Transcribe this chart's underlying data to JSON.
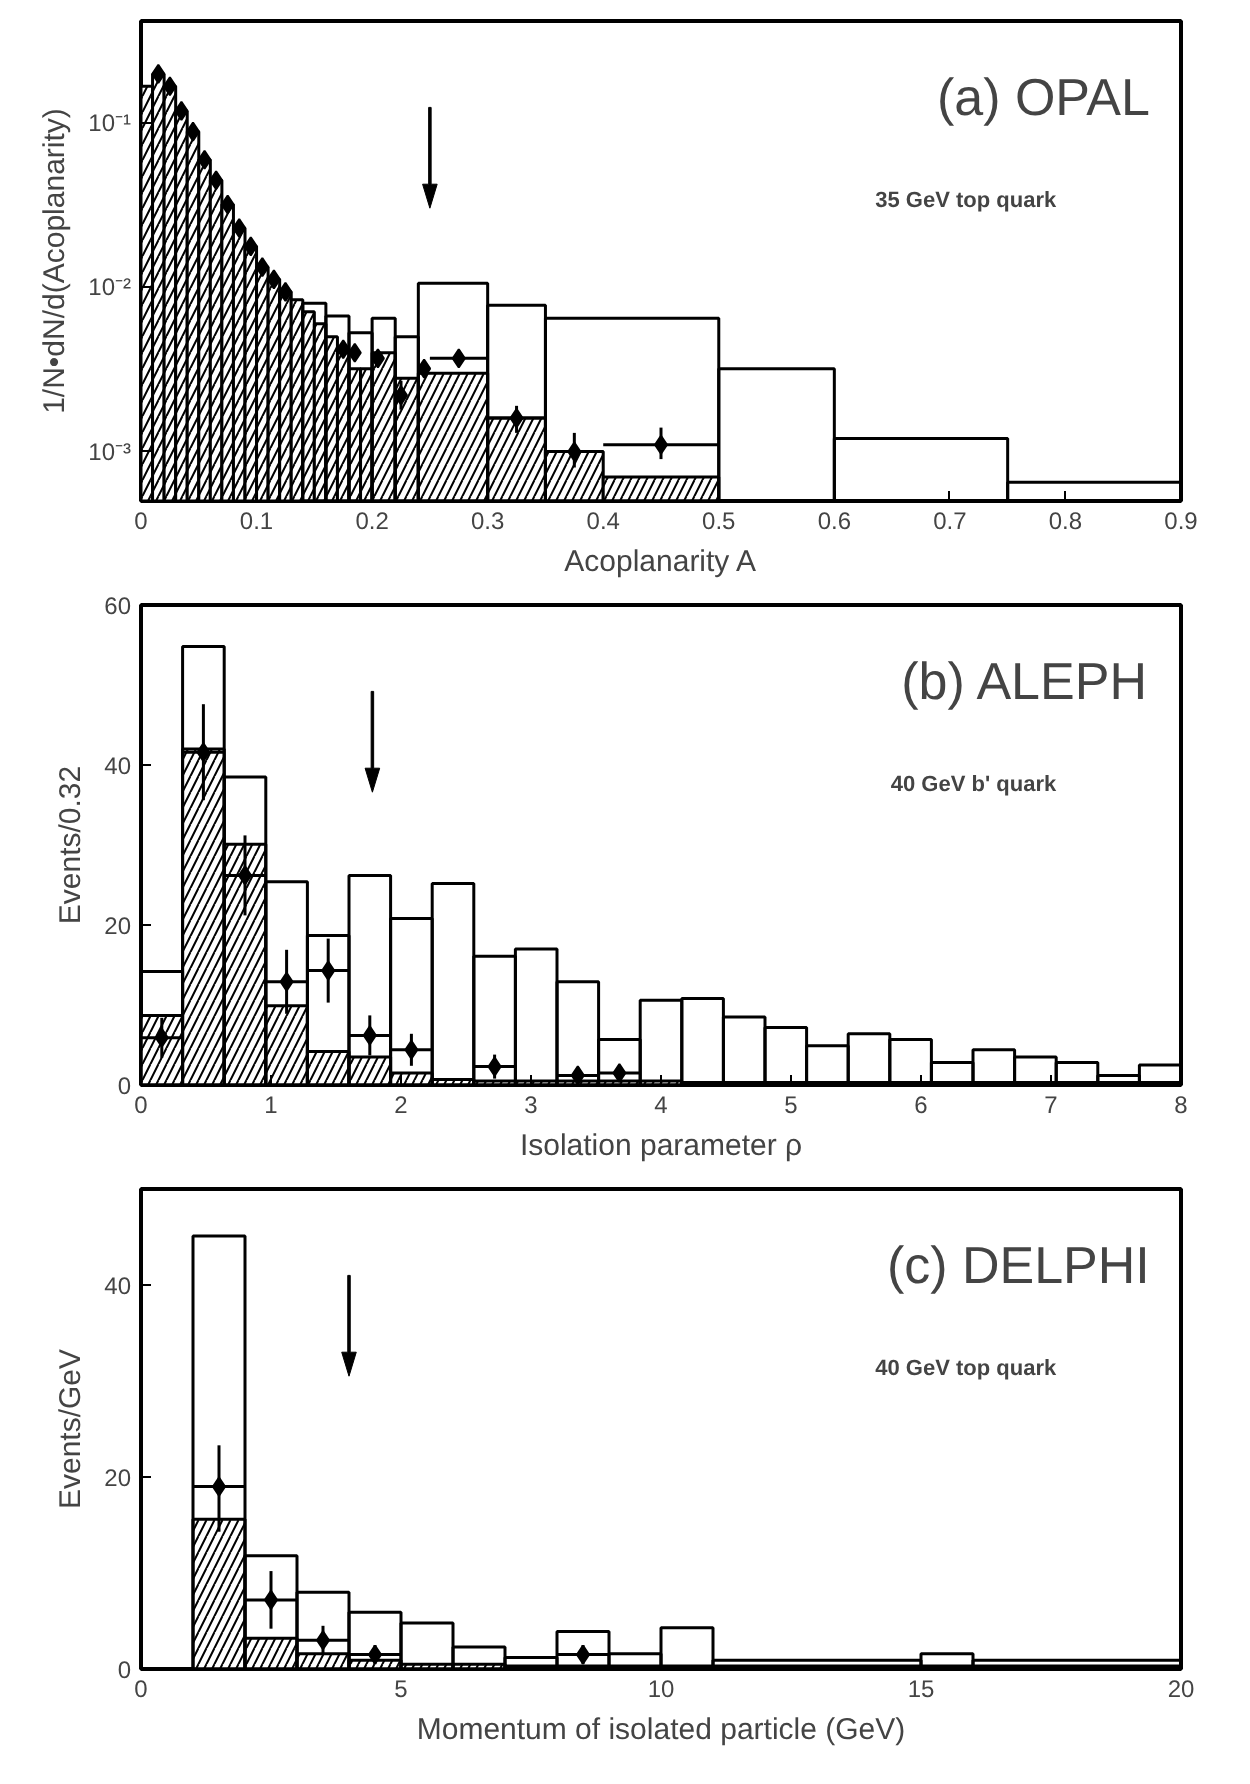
{
  "chart_data": [
    {
      "type": "histogram",
      "xlabel": "Acoplanarity A",
      "ylabel": "1/N•dN/d(Acoplanarity)",
      "annotations": [
        "(a) OPAL",
        "35 GeV top quark"
      ],
      "log": "y",
      "xlim": [
        0,
        0.9
      ],
      "ylim": [
        0.0005,
        0.42
      ],
      "xticks": [
        0,
        0.1,
        0.2,
        0.3,
        0.4,
        0.5,
        0.6,
        0.7,
        0.8,
        0.9
      ],
      "yticks": [
        {
          "value": 0.001,
          "label": "10⁻³"
        },
        {
          "value": 0.01,
          "label": "10⁻²"
        },
        {
          "value": 0.1,
          "label": "10⁻¹"
        }
      ],
      "grid": false,
      "ref_lines": [
        {
          "axis": "x",
          "value": 0.25,
          "label": null
        }
      ],
      "series": [
        {
          "color": "#000000",
          "bins": [
            0,
            0.01,
            0.02,
            0.03,
            0.04,
            0.05,
            0.06,
            0.07,
            0.08,
            0.09,
            0.1,
            0.11,
            0.12,
            0.13,
            0.14,
            0.15,
            0.16,
            0.17,
            0.18,
            0.19,
            0.2,
            0.22,
            0.24,
            0.3,
            0.35,
            0.4,
            0.5
          ],
          "values": [
            0.168,
            0.2,
            0.168,
            0.119,
            0.089,
            0.06,
            0.045,
            0.032,
            0.023,
            0.0178,
            0.0133,
            0.0112,
            0.0094,
            0.0084,
            0.0071,
            0.006,
            0.005,
            0.004,
            0.0032,
            0.0032,
            0.004,
            0.0028,
            0.003,
            0.0016,
            0.001,
            0.0007
          ]
        },
        {
          "color": "#000000",
          "bins": [
            0.14,
            0.16,
            0.18,
            0.2,
            0.22,
            0.24,
            0.3,
            0.35,
            0.5,
            0.6,
            0.75,
            0.9
          ],
          "values": [
            0.008,
            0.0067,
            0.0053,
            0.0065,
            0.005,
            0.0106,
            0.0078,
            0.0065,
            0.0032,
            0.0012,
            0.00065
          ]
        },
        {
          "type": "scatter",
          "color": "#000000",
          "x": [
            0.015,
            0.025,
            0.035,
            0.045,
            0.055,
            0.065,
            0.075,
            0.085,
            0.095,
            0.105,
            0.115,
            0.125,
            0.175,
            0.185,
            0.205,
            0.225,
            0.245,
            0.275,
            0.325,
            0.375,
            0.45
          ],
          "values": [
            0.2,
            0.168,
            0.119,
            0.089,
            0.06,
            0.045,
            0.032,
            0.023,
            0.0178,
            0.0133,
            0.0112,
            0.0094,
            0.0042,
            0.004,
            0.0037,
            0.0022,
            0.0032,
            0.0037,
            0.0016,
            0.001,
            0.0011
          ],
          "xerrors": [
            null,
            null,
            null,
            null,
            null,
            null,
            null,
            null,
            null,
            null,
            null,
            null,
            null,
            null,
            null,
            null,
            null,
            0.025,
            0.025,
            0.025,
            0.05
          ],
          "errors": [
            null,
            null,
            null,
            null,
            null,
            null,
            null,
            null,
            null,
            null,
            null,
            null,
            null,
            null,
            null,
            [
              0.0018,
              0.0027
            ],
            null,
            null,
            [
              0.0013,
              0.0019
            ],
            [
              0.0008,
              0.0013
            ],
            [
              0.0009,
              0.0014
            ]
          ]
        }
      ]
    },
    {
      "type": "histogram",
      "xlabel": "Isolation parameter ρ",
      "ylabel": "Events/0.32",
      "annotations": [
        "(b) ALEPH",
        "40 GeV b' quark"
      ],
      "xlim": [
        0,
        8
      ],
      "ylim": [
        0,
        60
      ],
      "xticks": [
        0,
        1,
        2,
        3,
        4,
        5,
        6,
        7,
        8
      ],
      "yticks": [
        0,
        20,
        40,
        60
      ],
      "grid": false,
      "ref_lines": [
        {
          "axis": "x",
          "value": 1.78,
          "label": null
        }
      ],
      "series": [
        {
          "color": "#000000",
          "bins": [
            0,
            0.32,
            0.64,
            0.96,
            1.28,
            1.6,
            1.92,
            2.24,
            2.56,
            2.88,
            3.2,
            3.52,
            3.84,
            4.16,
            4.48,
            4.8,
            5.12,
            5.44,
            5.76,
            6.08,
            6.4,
            6.72,
            7.04,
            7.36,
            7.68,
            8
          ],
          "values": [
            8.7,
            42,
            30.1,
            9.9,
            4.2,
            3.5,
            1.5,
            0.7,
            0.5,
            0.5,
            0.5,
            0.5,
            0.5,
            0.3,
            0.3,
            0.3,
            0.3,
            0.3,
            0.3,
            0.3,
            0.3,
            0.3,
            0.3,
            0.3,
            0.3
          ]
        },
        {
          "color": "#000000",
          "bins": [
            0,
            0.32,
            0.64,
            0.96,
            1.28,
            1.6,
            1.92,
            2.24,
            2.56,
            2.88,
            3.2,
            3.52,
            3.84,
            4.16,
            4.48,
            4.8,
            5.12,
            5.44,
            5.76,
            6.08,
            6.4,
            6.72,
            7.04,
            7.36,
            7.68,
            8
          ],
          "values": [
            14.2,
            54.8,
            38.5,
            25.4,
            18.7,
            26.2,
            20.8,
            25.2,
            16.1,
            17,
            12.9,
            5.7,
            10.6,
            10.8,
            8.5,
            7.2,
            4.9,
            6.4,
            5.7,
            2.8,
            4.4,
            3.5,
            2.8,
            1.2,
            2.5
          ]
        },
        {
          "type": "scatter",
          "color": "#000000",
          "x": [
            0.16,
            0.48,
            0.8,
            1.12,
            1.44,
            1.76,
            2.08,
            2.72,
            3.36,
            3.68
          ],
          "values": [
            5.9,
            41.6,
            26.2,
            12.9,
            14.3,
            6.2,
            4.4,
            2.3,
            1.2,
            1.5
          ],
          "xerrors": [
            0.16,
            0.16,
            0.16,
            0.16,
            0.16,
            0.16,
            0.16,
            0.16,
            0.16,
            0.16
          ],
          "errors": [
            2.5,
            6,
            5,
            4,
            4,
            2.5,
            2,
            1.5,
            1,
            1
          ]
        }
      ]
    },
    {
      "type": "histogram",
      "xlabel": "Momentum of isolated particle (GeV)",
      "ylabel": "Events/GeV",
      "annotations": [
        "(c) DELPHI",
        "40 GeV top quark"
      ],
      "xlim": [
        0,
        20
      ],
      "ylim": [
        0,
        50
      ],
      "xticks": [
        0,
        5,
        10,
        15,
        20
      ],
      "yticks": [
        0,
        20,
        40
      ],
      "grid": false,
      "ref_lines": [
        {
          "axis": "x",
          "value": 4,
          "label": null
        }
      ],
      "series": [
        {
          "color": "#000000",
          "bins": [
            1,
            2,
            3,
            4,
            5,
            6,
            7,
            8,
            9,
            10,
            11,
            15,
            16,
            20
          ],
          "values": [
            15.6,
            3.2,
            1.6,
            0.9,
            0.5,
            0.5,
            0.3,
            0.3,
            0.3,
            0.3,
            0.3,
            0.3,
            0.3
          ]
        },
        {
          "color": "#000000",
          "bins": [
            1,
            2,
            3,
            4,
            5,
            6,
            7,
            8,
            9,
            10,
            11,
            15,
            16,
            20
          ],
          "values": [
            45.1,
            11.8,
            8,
            5.9,
            4.8,
            2.3,
            1.2,
            3.9,
            1.6,
            4.3,
            0.9,
            1.6,
            0.9
          ]
        },
        {
          "type": "scatter",
          "color": "#000000",
          "x": [
            1.5,
            2.5,
            3.5,
            4.5,
            8.5
          ],
          "values": [
            19,
            7.2,
            3,
            1.5,
            1.5
          ],
          "xerrors": [
            0.5,
            0.5,
            0.5,
            0.5,
            0.5
          ],
          "errors": [
            [
              14.3,
              23.3
            ],
            3,
            1.5,
            1,
            1
          ]
        }
      ]
    }
  ]
}
